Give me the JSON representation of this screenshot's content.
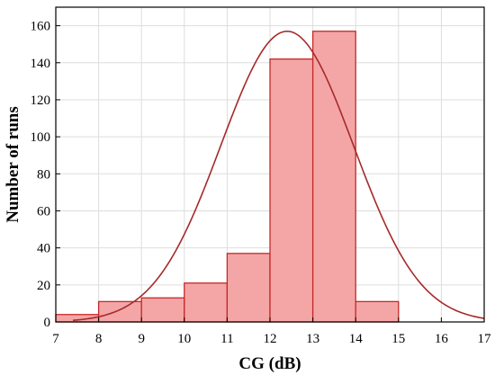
{
  "chart_data": {
    "type": "bar",
    "subtype": "histogram",
    "title": "",
    "xlabel": "CG (dB)",
    "ylabel": "Number of runs",
    "xlim": [
      7,
      17
    ],
    "ylim": [
      0,
      170
    ],
    "xticks": [
      7,
      8,
      9,
      10,
      11,
      12,
      13,
      14,
      15,
      16,
      17
    ],
    "yticks": [
      0,
      20,
      40,
      60,
      80,
      100,
      120,
      140,
      160
    ],
    "grid": true,
    "bins": [
      {
        "start": 7,
        "end": 8,
        "value": 4
      },
      {
        "start": 8,
        "end": 9,
        "value": 11
      },
      {
        "start": 9,
        "end": 10,
        "value": 13
      },
      {
        "start": 10,
        "end": 11,
        "value": 21
      },
      {
        "start": 11,
        "end": 12,
        "value": 37
      },
      {
        "start": 12,
        "end": 13,
        "value": 142
      },
      {
        "start": 13,
        "end": 14,
        "value": 157
      },
      {
        "start": 14,
        "end": 15,
        "value": 11
      }
    ],
    "fit_curve": {
      "type": "normal",
      "mean": 12.4,
      "sd": 1.55,
      "peak": 157,
      "x_start": 7.4,
      "x_end": 17
    },
    "colors": {
      "bar_fill": "#f4a6a6",
      "bar_stroke": "#c62828",
      "curve": "#a52a2a",
      "grid": "#dddddd"
    }
  }
}
